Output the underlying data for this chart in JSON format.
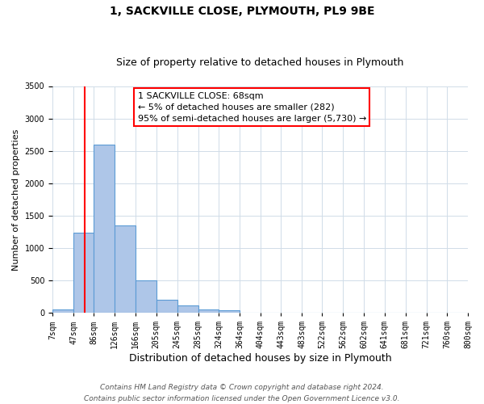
{
  "title": "1, SACKVILLE CLOSE, PLYMOUTH, PL9 9BE",
  "subtitle": "Size of property relative to detached houses in Plymouth",
  "xlabel": "Distribution of detached houses by size in Plymouth",
  "ylabel": "Number of detached properties",
  "bar_edges": [
    7,
    47,
    86,
    126,
    166,
    205,
    245,
    285,
    324,
    364,
    404,
    443,
    483,
    522,
    562,
    602,
    641,
    681,
    721,
    760,
    800
  ],
  "bar_heights": [
    50,
    1240,
    2590,
    1350,
    500,
    200,
    115,
    50,
    40,
    0,
    0,
    0,
    0,
    0,
    0,
    0,
    0,
    0,
    0,
    0
  ],
  "bar_color": "#aec6e8",
  "bar_edgecolor": "#5b9bd5",
  "property_line_x": 68,
  "property_line_color": "red",
  "ylim": [
    0,
    3500
  ],
  "yticks": [
    0,
    500,
    1000,
    1500,
    2000,
    2500,
    3000,
    3500
  ],
  "xtick_labels": [
    "7sqm",
    "47sqm",
    "86sqm",
    "126sqm",
    "166sqm",
    "205sqm",
    "245sqm",
    "285sqm",
    "324sqm",
    "364sqm",
    "404sqm",
    "443sqm",
    "483sqm",
    "522sqm",
    "562sqm",
    "602sqm",
    "641sqm",
    "681sqm",
    "721sqm",
    "760sqm",
    "800sqm"
  ],
  "annotation_box_text": "1 SACKVILLE CLOSE: 68sqm\n← 5% of detached houses are smaller (282)\n95% of semi-detached houses are larger (5,730) →",
  "footer_line1": "Contains HM Land Registry data © Crown copyright and database right 2024.",
  "footer_line2": "Contains public sector information licensed under the Open Government Licence v3.0.",
  "grid_color": "#d0dce8",
  "background_color": "#ffffff",
  "title_fontsize": 10,
  "subtitle_fontsize": 9,
  "ylabel_fontsize": 8,
  "xlabel_fontsize": 9,
  "tick_fontsize": 7,
  "footer_fontsize": 6.5,
  "annot_fontsize": 8
}
